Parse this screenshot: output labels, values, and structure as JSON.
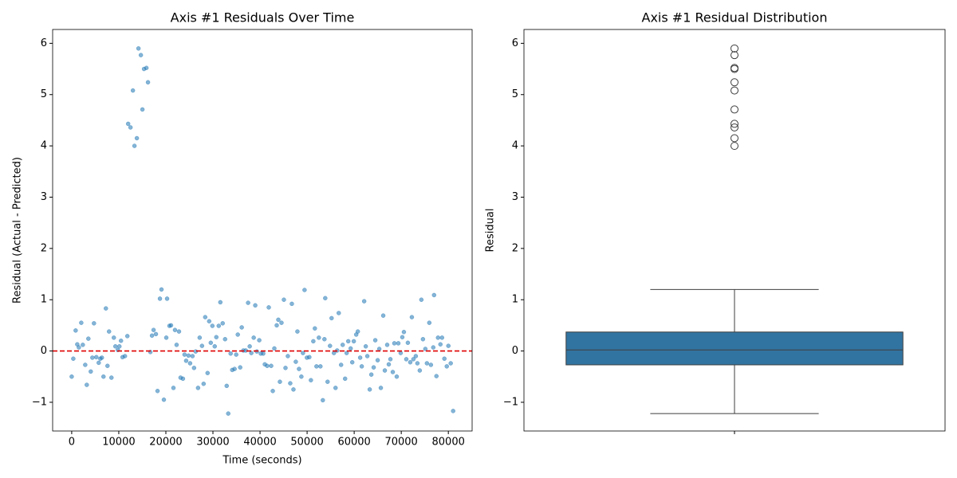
{
  "chart_data": [
    {
      "type": "scatter",
      "title": "Axis #1 Residuals Over Time",
      "xlabel": "Time (seconds)",
      "ylabel": "Residual (Actual - Predicted)",
      "color": "#1f77b4",
      "xlim": [
        -4050,
        85050
      ],
      "ylim": [
        -1.56,
        6.27
      ],
      "xticks": [
        0,
        10000,
        20000,
        30000,
        40000,
        50000,
        60000,
        70000,
        80000
      ],
      "yticks": [
        {
          "value": -1,
          "label": "−1"
        },
        0,
        1,
        2,
        3,
        4,
        5,
        6
      ],
      "grid": false,
      "hline": {
        "value": 0,
        "color": "#e00000"
      },
      "x": [
        0,
        340,
        840,
        1180,
        1520,
        2030,
        2360,
        2870,
        3200,
        3540,
        4050,
        4390,
        4730,
        5230,
        5740,
        6080,
        6410,
        6750,
        7260,
        7600,
        7930,
        8440,
        8950,
        9280,
        9790,
        10130,
        10470,
        10800,
        11310,
        11820,
        11990,
        12490,
        13000,
        13330,
        13840,
        14180,
        14690,
        15020,
        15360,
        15870,
        16200,
        16710,
        17050,
        17390,
        17890,
        18230,
        18740,
        19070,
        19580,
        20090,
        20260,
        20760,
        21100,
        21610,
        21940,
        22280,
        22790,
        23120,
        23630,
        23970,
        24310,
        24810,
        25150,
        25660,
        25990,
        26330,
        26840,
        27180,
        27680,
        28020,
        28360,
        28860,
        29200,
        29540,
        29880,
        30380,
        30720,
        31230,
        31570,
        32070,
        32580,
        32920,
        33250,
        33760,
        34100,
        34600,
        34940,
        35280,
        35790,
        36120,
        36460,
        36970,
        37470,
        37810,
        38150,
        38660,
        38990,
        39330,
        39840,
        40170,
        40680,
        41020,
        41520,
        41860,
        42370,
        42710,
        43040,
        43550,
        43890,
        44220,
        44560,
        45070,
        45410,
        45910,
        46420,
        46760,
        47100,
        47600,
        47940,
        48280,
        48780,
        49120,
        49460,
        49960,
        50470,
        50810,
        51320,
        51650,
        51990,
        52500,
        52830,
        53340,
        53680,
        53850,
        54350,
        54860,
        55200,
        55700,
        56040,
        56380,
        56720,
        57220,
        57560,
        58070,
        58400,
        58740,
        59250,
        59590,
        59920,
        60430,
        60770,
        61270,
        61610,
        62120,
        62460,
        62790,
        63300,
        63640,
        64140,
        64480,
        64990,
        65330,
        65660,
        66170,
        66510,
        67010,
        67350,
        67690,
        68200,
        68530,
        69040,
        69380,
        69880,
        70220,
        70560,
        71070,
        71400,
        71910,
        72250,
        72580,
        73090,
        73430,
        73930,
        74270,
        74610,
        75120,
        75450,
        75960,
        76300,
        76800,
        76970,
        77470,
        77810,
        78320,
        78660,
        79160,
        79670,
        80010,
        80510,
        81020
      ],
      "values": [
        -0.5,
        -0.15,
        0.4,
        0.13,
        0.07,
        0.55,
        0.12,
        -0.27,
        -0.66,
        0.24,
        -0.4,
        -0.13,
        0.54,
        -0.12,
        -0.23,
        -0.15,
        -0.13,
        -0.5,
        0.83,
        -0.29,
        0.38,
        -0.52,
        0.26,
        0.09,
        0.02,
        0.09,
        0.2,
        -0.12,
        -0.1,
        0.29,
        4.43,
        4.36,
        5.08,
        4.0,
        4.15,
        5.9,
        5.77,
        4.71,
        5.5,
        5.52,
        5.24,
        -0.02,
        0.3,
        0.41,
        0.33,
        -0.78,
        1.02,
        1.2,
        -0.95,
        0.26,
        1.02,
        0.49,
        0.5,
        -0.72,
        0.41,
        0.12,
        0.38,
        -0.52,
        -0.54,
        -0.07,
        -0.19,
        -0.09,
        -0.24,
        -0.1,
        -0.33,
        -0.01,
        -0.72,
        0.26,
        0.1,
        -0.64,
        0.66,
        -0.43,
        0.58,
        0.16,
        0.49,
        0.09,
        0.27,
        0.49,
        0.95,
        0.54,
        0.23,
        -0.68,
        -1.22,
        -0.05,
        -0.37,
        -0.35,
        -0.07,
        0.32,
        -0.32,
        0.46,
        0.01,
        0.01,
        0.94,
        0.09,
        -0.04,
        0.26,
        0.89,
        -0.01,
        0.21,
        -0.05,
        -0.05,
        -0.26,
        -0.29,
        0.85,
        -0.29,
        -0.78,
        0.05,
        0.5,
        0.61,
        -0.6,
        0.55,
        1.0,
        -0.33,
        -0.1,
        -0.63,
        0.92,
        -0.75,
        -0.21,
        0.38,
        -0.35,
        -0.5,
        -0.04,
        1.19,
        -0.13,
        -0.12,
        -0.57,
        0.19,
        0.44,
        -0.3,
        0.26,
        -0.3,
        -0.96,
        0.23,
        1.03,
        -0.6,
        0.1,
        0.64,
        -0.04,
        -0.72,
        0.01,
        0.74,
        -0.27,
        0.12,
        -0.54,
        -0.04,
        0.19,
        0.05,
        -0.22,
        0.19,
        0.32,
        0.38,
        -0.13,
        -0.3,
        0.97,
        0.09,
        -0.1,
        -0.75,
        -0.46,
        -0.32,
        0.21,
        -0.18,
        0.04,
        -0.72,
        0.69,
        -0.38,
        0.12,
        -0.26,
        -0.16,
        -0.41,
        0.15,
        -0.5,
        0.15,
        -0.04,
        0.27,
        0.37,
        -0.16,
        0.16,
        -0.22,
        0.66,
        -0.16,
        -0.1,
        -0.24,
        -0.38,
        1.0,
        0.23,
        0.04,
        -0.24,
        0.55,
        -0.27,
        0.07,
        1.09,
        -0.49,
        0.26,
        0.13,
        0.26,
        -0.15,
        -0.3,
        0.1,
        -0.24,
        -1.17
      ]
    },
    {
      "type": "box",
      "title": "Axis #1 Residual Distribution",
      "ylabel": "Residual",
      "color": "#3274a1",
      "ylim": [
        -1.56,
        6.27
      ],
      "yticks": [
        {
          "value": -1,
          "label": "−1"
        },
        0,
        1,
        2,
        3,
        4,
        5,
        6
      ],
      "grid": false,
      "categories": [
        null
      ],
      "boxes": [
        {
          "low": -1.22,
          "q1": -0.27,
          "median": 0.02,
          "q3": 0.37,
          "high": 1.2,
          "outliers": [
            5.9,
            5.77,
            5.52,
            5.5,
            5.24,
            5.08,
            4.71,
            4.43,
            4.36,
            4.15,
            4.0
          ]
        }
      ]
    }
  ]
}
